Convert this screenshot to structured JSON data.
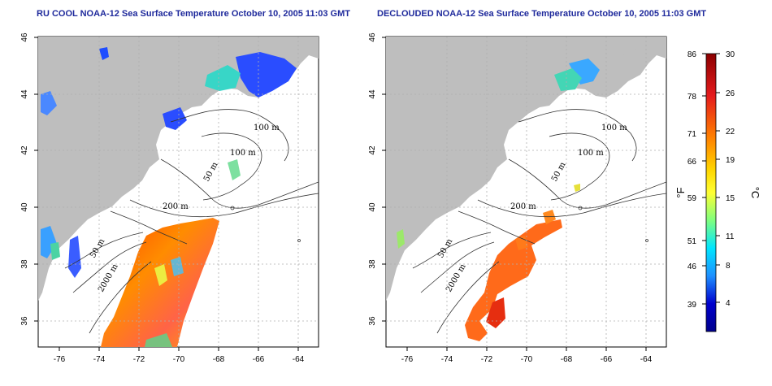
{
  "maps": [
    {
      "id": "ru-cool",
      "title": "RU COOL NOAA-12 Sea Surface Temperature October 10, 2005 11:03 GMT",
      "contour_labels": [
        "100 m",
        "100 m",
        "50 m",
        "200 m",
        "50 m",
        "2000 m"
      ],
      "x_ticks": [
        "-76",
        "-74",
        "-72",
        "-70",
        "-68",
        "-66",
        "-64"
      ],
      "y_ticks": [
        "46",
        "44",
        "42",
        "40",
        "38",
        "36"
      ]
    },
    {
      "id": "declouded",
      "title": "DECLOUDED NOAA-12 Sea Surface Temperature October 10, 2005 11:03 GMT",
      "contour_labels": [
        "100 m",
        "100 m",
        "50 m",
        "200 m",
        "50 m",
        "2000 m"
      ],
      "x_ticks": [
        "-76",
        "-74",
        "-72",
        "-70",
        "-68",
        "-66",
        "-64"
      ],
      "y_ticks": [
        "46",
        "44",
        "42",
        "40",
        "38",
        "36"
      ]
    }
  ],
  "colorbar": {
    "fahrenheit_ticks": [
      "86",
      "78",
      "71",
      "66",
      "59",
      "51",
      "46",
      "39"
    ],
    "celsius_ticks": [
      "30",
      "26",
      "22",
      "19",
      "15",
      "11",
      "8",
      "4"
    ],
    "fahrenheit_unit": "°F",
    "celsius_unit": "°C",
    "colors": [
      "#8b0000",
      "#e41a1c",
      "#ff7f00",
      "#ffd700",
      "#ffff33",
      "#7fff7f",
      "#00e5ff",
      "#1e90ff",
      "#0000cd",
      "#00008b"
    ]
  },
  "colors": {
    "land": "#bebebe",
    "title": "#1f2a9c",
    "grid": "#b0b0b0"
  }
}
